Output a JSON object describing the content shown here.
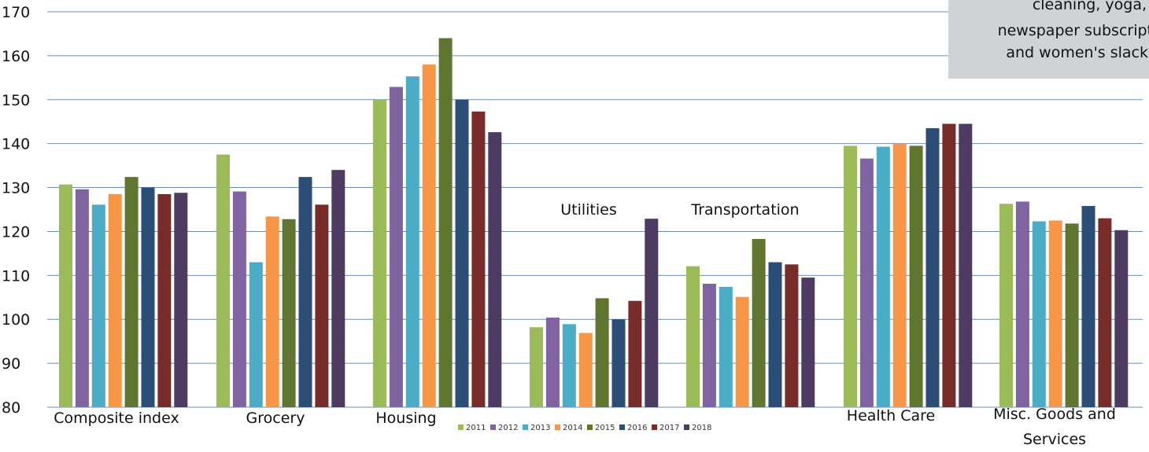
{
  "chart_data": {
    "type": "bar",
    "ylim": [
      80,
      170
    ],
    "yticks": [
      80,
      90,
      100,
      110,
      120,
      130,
      140,
      150,
      160,
      170
    ],
    "grid": true,
    "legend_position": "bottom",
    "categories": [
      [
        "Composite index"
      ],
      [
        "Grocery"
      ],
      [
        "Housing"
      ],
      [
        "Utilities"
      ],
      [
        "Transportation"
      ],
      [
        "Health Care"
      ],
      [
        "Misc. Goods and",
        "Services"
      ]
    ],
    "series": [
      {
        "name": "2011",
        "color": "#9bbb59",
        "values": [
          130.7,
          137.5,
          150.0,
          98.2,
          112.1,
          139.5,
          126.3
        ]
      },
      {
        "name": "2012",
        "color": "#8064a2",
        "values": [
          129.6,
          129.1,
          152.9,
          100.4,
          108.1,
          136.6,
          126.8
        ]
      },
      {
        "name": "2013",
        "color": "#4bacc6",
        "values": [
          126.1,
          113.0,
          155.3,
          98.9,
          107.4,
          139.3,
          122.3
        ]
      },
      {
        "name": "2014",
        "color": "#f79646",
        "values": [
          128.5,
          123.4,
          158.0,
          96.9,
          105.1,
          140.0,
          122.5
        ]
      },
      {
        "name": "2015",
        "color": "#5f7530",
        "values": [
          132.4,
          122.8,
          164.0,
          104.8,
          118.3,
          139.5,
          121.8
        ]
      },
      {
        "name": "2016",
        "color": "#2c4d75",
        "values": [
          130.0,
          132.4,
          150.0,
          100.0,
          113.0,
          143.5,
          125.8
        ]
      },
      {
        "name": "2017",
        "color": "#772c2a",
        "values": [
          128.5,
          126.1,
          147.3,
          104.2,
          112.5,
          144.5,
          123.0
        ]
      },
      {
        "name": "2018",
        "color": "#4d3b62",
        "values": [
          128.8,
          134.0,
          142.6,
          122.9,
          109.5,
          144.5,
          120.3
        ]
      }
    ],
    "annotation_lines": [
      "cleaning, yoga,",
      "newspaper subscript",
      "and women's slack"
    ]
  }
}
